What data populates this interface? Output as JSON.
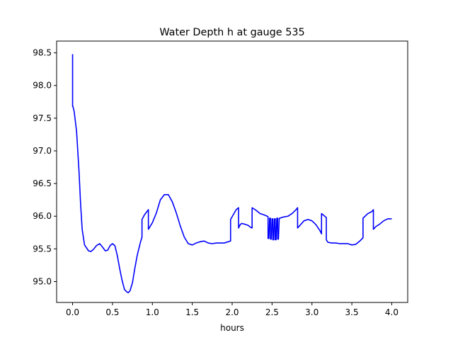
{
  "chart_data": {
    "type": "line",
    "title": "Water Depth h at gauge 535",
    "xlabel": "hours",
    "ylabel": "",
    "xlim": [
      -0.2,
      4.2
    ],
    "ylim": [
      94.68,
      98.68
    ],
    "grid": false,
    "xticks": [
      0.0,
      0.5,
      1.0,
      1.5,
      2.0,
      2.5,
      3.0,
      3.5,
      4.0
    ],
    "xtick_labels": [
      "0.0",
      "0.5",
      "1.0",
      "1.5",
      "2.0",
      "2.5",
      "3.0",
      "3.5",
      "4.0"
    ],
    "yticks": [
      95.0,
      95.5,
      96.0,
      96.5,
      97.0,
      97.5,
      98.0,
      98.5
    ],
    "ytick_labels": [
      "95.0",
      "95.5",
      "96.0",
      "96.5",
      "97.0",
      "97.5",
      "98.0",
      "98.5"
    ],
    "series": [
      {
        "color": "#0000ff",
        "x": [
          0.0,
          0.0,
          0.005,
          0.02,
          0.05,
          0.08,
          0.1,
          0.12,
          0.15,
          0.2,
          0.23,
          0.26,
          0.3,
          0.34,
          0.38,
          0.41,
          0.44,
          0.47,
          0.5,
          0.53,
          0.56,
          0.59,
          0.62,
          0.65,
          0.68,
          0.7,
          0.72,
          0.75,
          0.78,
          0.81,
          0.85,
          0.87,
          0.87,
          0.9,
          0.95,
          0.95,
          1.0,
          1.05,
          1.1,
          1.15,
          1.2,
          1.25,
          1.3,
          1.35,
          1.4,
          1.45,
          1.5,
          1.55,
          1.6,
          1.65,
          1.7,
          1.75,
          1.8,
          1.9,
          1.98,
          1.98,
          2.05,
          2.08,
          2.08,
          2.1,
          2.12,
          2.15,
          2.2,
          2.23,
          2.25,
          2.25,
          2.3,
          2.35,
          2.4,
          2.44,
          2.45,
          2.45,
          2.46,
          2.47,
          2.48,
          2.48,
          2.49,
          2.5,
          2.51,
          2.51,
          2.52,
          2.53,
          2.54,
          2.54,
          2.55,
          2.56,
          2.57,
          2.57,
          2.58,
          2.59,
          2.6,
          2.6,
          2.62,
          2.65,
          2.7,
          2.75,
          2.8,
          2.82,
          2.82,
          2.85,
          2.9,
          2.95,
          3.0,
          3.05,
          3.1,
          3.12,
          3.12,
          3.16,
          3.18,
          3.18,
          3.2,
          3.25,
          3.3,
          3.35,
          3.4,
          3.45,
          3.5,
          3.55,
          3.6,
          3.64,
          3.64,
          3.7,
          3.75,
          3.77,
          3.77,
          3.8,
          3.85,
          3.9,
          3.95,
          4.0
        ],
        "y": [
          98.48,
          97.68,
          97.68,
          97.6,
          97.3,
          96.7,
          96.2,
          95.8,
          95.56,
          95.47,
          95.46,
          95.49,
          95.55,
          95.58,
          95.52,
          95.47,
          95.48,
          95.55,
          95.58,
          95.55,
          95.4,
          95.2,
          95.02,
          94.88,
          94.84,
          94.83,
          94.86,
          94.98,
          95.2,
          95.4,
          95.6,
          95.68,
          95.95,
          96.02,
          96.1,
          95.8,
          95.9,
          96.05,
          96.25,
          96.33,
          96.33,
          96.22,
          96.05,
          95.85,
          95.68,
          95.58,
          95.56,
          95.59,
          95.61,
          95.62,
          95.59,
          95.58,
          95.59,
          95.59,
          95.62,
          95.95,
          96.1,
          96.13,
          95.82,
          95.87,
          95.89,
          95.88,
          95.86,
          95.83,
          95.82,
          96.13,
          96.09,
          96.04,
          96.02,
          96.0,
          95.99,
          95.66,
          95.66,
          95.97,
          95.97,
          95.65,
          95.65,
          95.96,
          95.96,
          95.64,
          95.64,
          95.96,
          95.96,
          95.64,
          95.64,
          95.97,
          95.97,
          95.65,
          95.65,
          95.97,
          95.97,
          95.97,
          95.98,
          95.99,
          96.0,
          96.04,
          96.1,
          96.13,
          95.82,
          95.86,
          95.93,
          95.95,
          95.93,
          95.87,
          95.78,
          95.73,
          96.04,
          96.0,
          95.98,
          95.64,
          95.6,
          95.59,
          95.59,
          95.58,
          95.58,
          95.58,
          95.56,
          95.57,
          95.62,
          95.67,
          95.97,
          96.04,
          96.07,
          96.1,
          95.8,
          95.84,
          95.88,
          95.93,
          95.96,
          95.96
        ]
      }
    ]
  }
}
